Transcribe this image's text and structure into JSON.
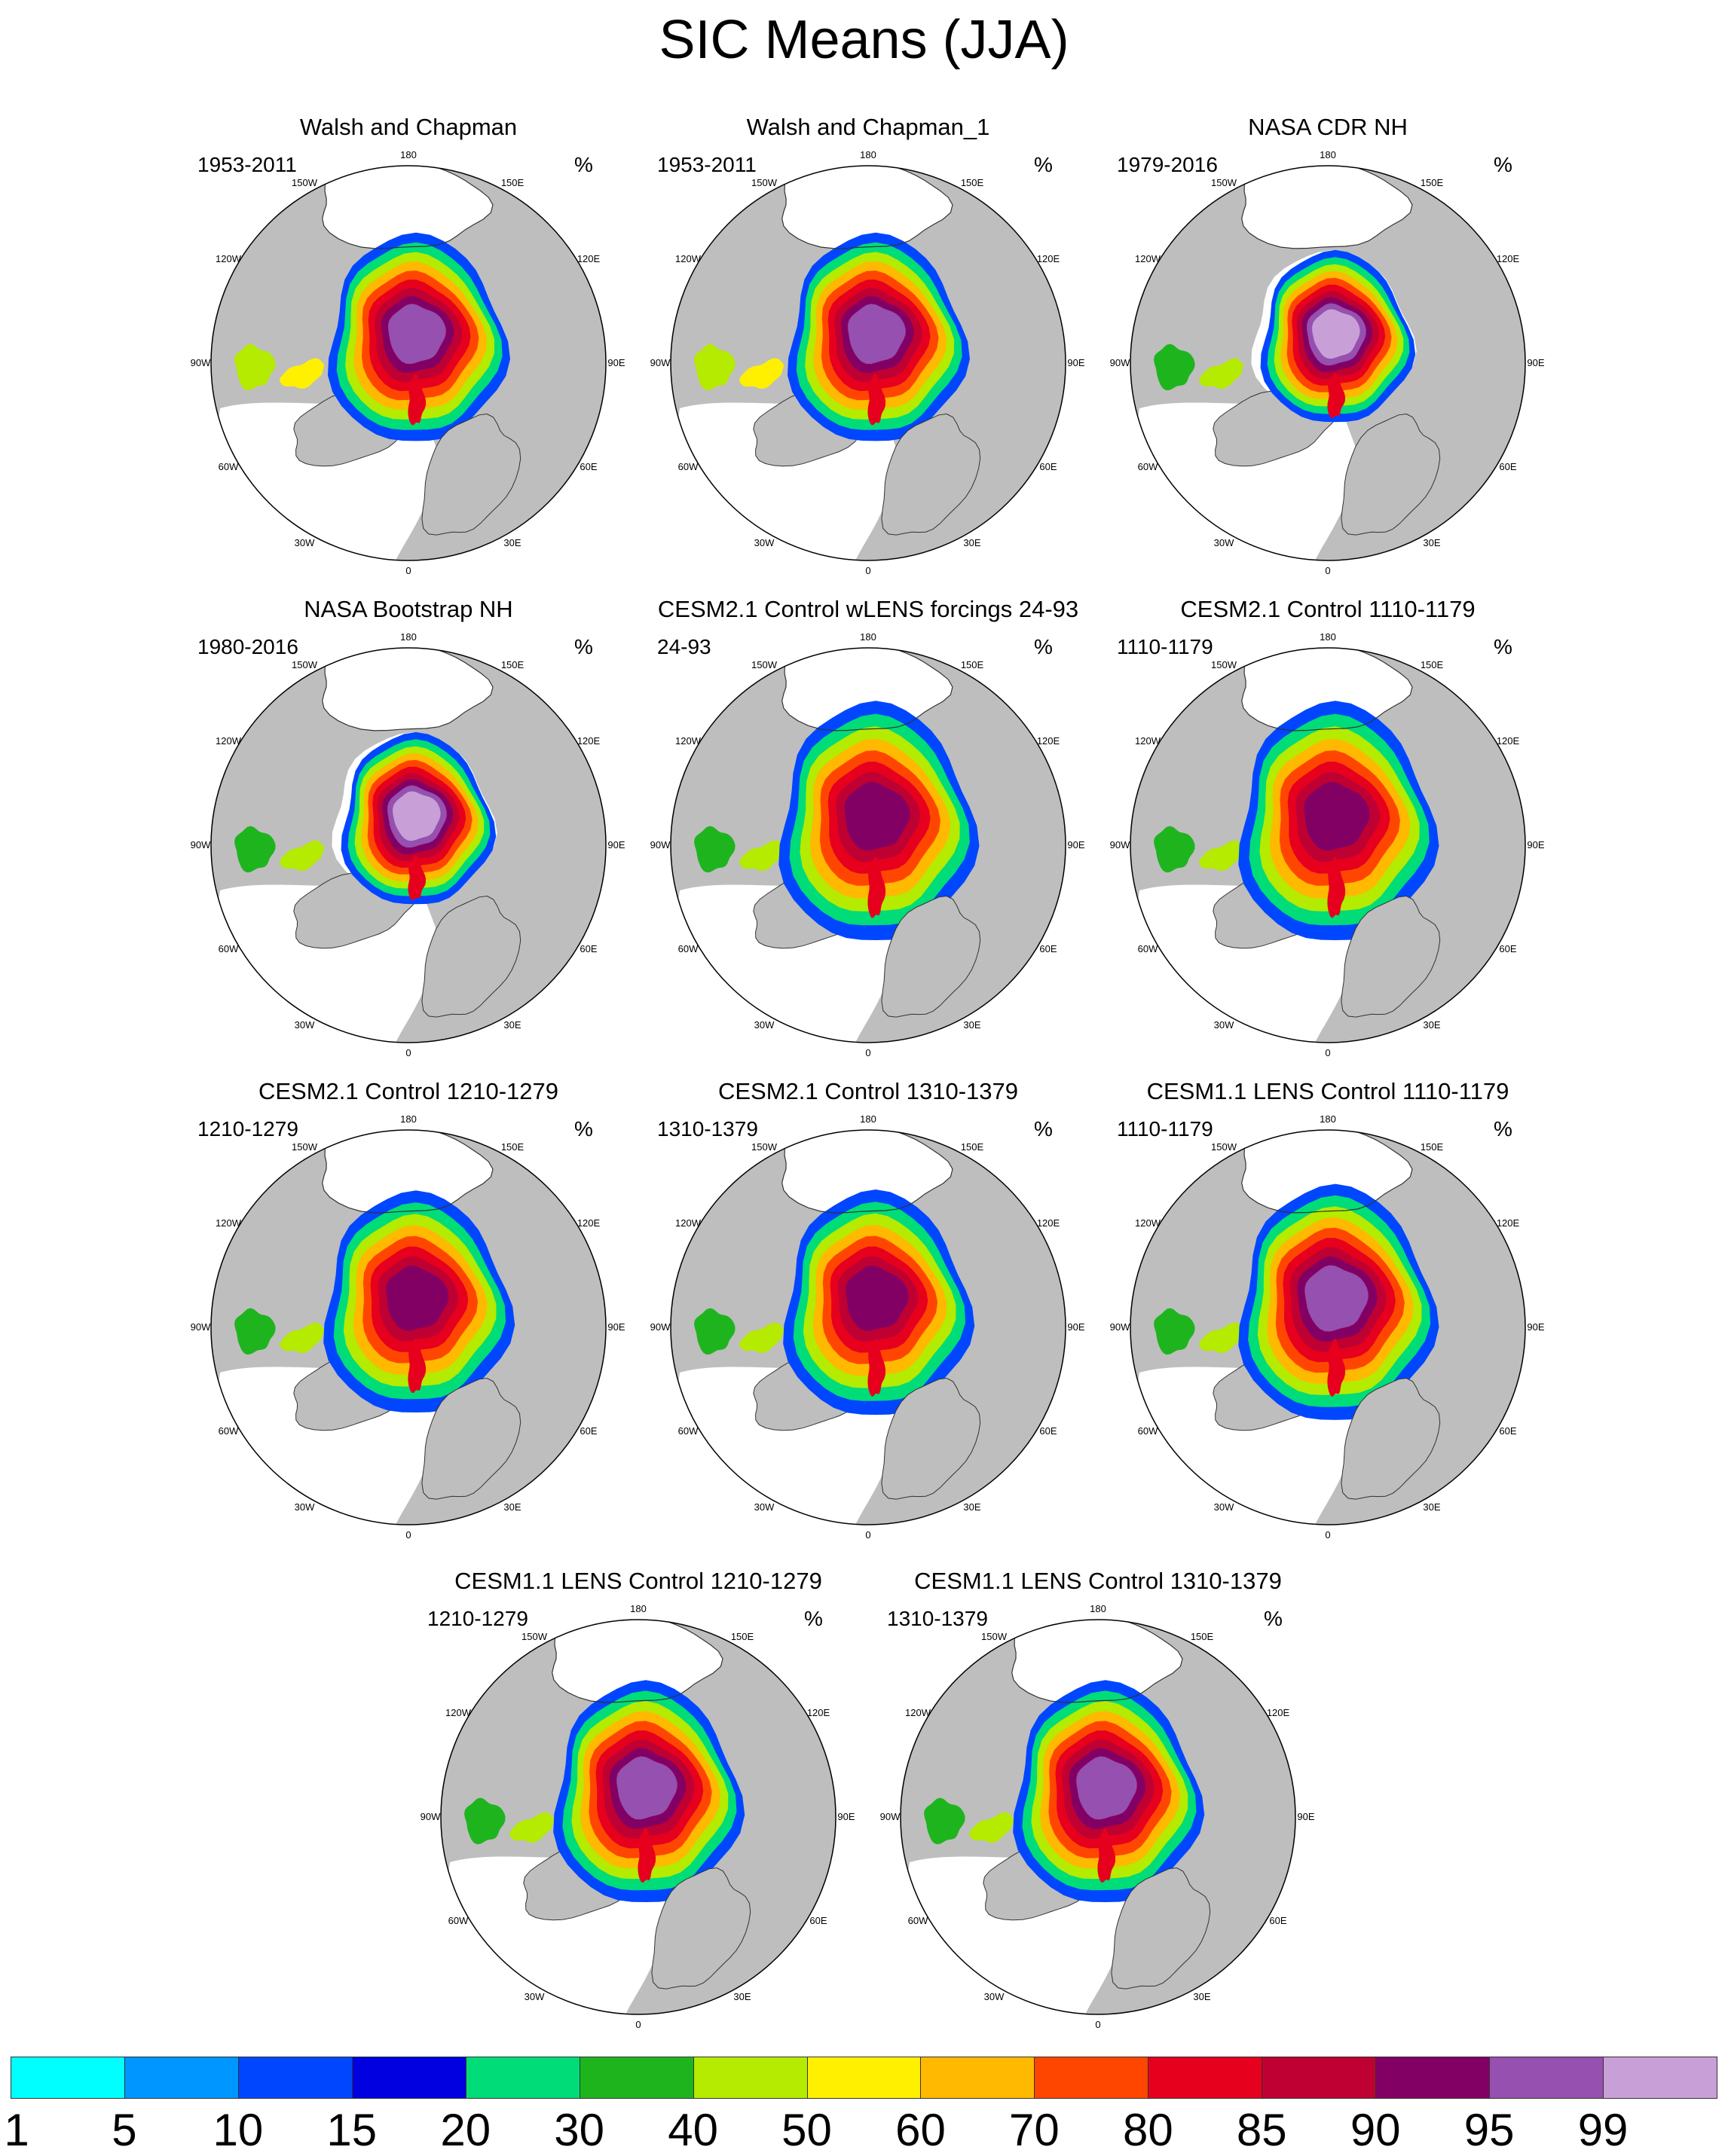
{
  "title": "SIC Means (JJA)",
  "units": "%",
  "longitude_labels": [
    "180",
    "150E",
    "120E",
    "90E",
    "60E",
    "30E",
    "0",
    "30W",
    "60W",
    "90W",
    "120W",
    "150W"
  ],
  "panels": [
    {
      "title": "Walsh and Chapman",
      "period": "1953-2011",
      "pack_level": 95,
      "pack_scale": 1.0,
      "atlantic_reach": 0.55,
      "hudson_level": 40
    },
    {
      "title": "Walsh and Chapman_1",
      "period": "1953-2011",
      "pack_level": 95,
      "pack_scale": 1.0,
      "atlantic_reach": 0.55,
      "hudson_level": 40
    },
    {
      "title": "NASA CDR NH",
      "period": "1979-2016",
      "pack_level": 99,
      "pack_scale": 0.85,
      "atlantic_reach": 0.45,
      "hudson_level": 30
    },
    {
      "title": "NASA Bootstrap NH",
      "period": "1980-2016",
      "pack_level": 99,
      "pack_scale": 0.85,
      "atlantic_reach": 0.45,
      "hudson_level": 30
    },
    {
      "title": "CESM2.1 Control wLENS forcings 24-93",
      "period": "24-93",
      "pack_level": 90,
      "pack_scale": 1.1,
      "atlantic_reach": 0.7,
      "hudson_level": 30
    },
    {
      "title": "CESM2.1 Control 1110-1179",
      "period": "1110-1179",
      "pack_level": 90,
      "pack_scale": 1.1,
      "atlantic_reach": 0.7,
      "hudson_level": 30
    },
    {
      "title": "CESM2.1 Control 1210-1279",
      "period": "1210-1279",
      "pack_level": 90,
      "pack_scale": 1.05,
      "atlantic_reach": 0.6,
      "hudson_level": 30
    },
    {
      "title": "CESM2.1 Control 1310-1379",
      "period": "1310-1379",
      "pack_level": 90,
      "pack_scale": 1.05,
      "atlantic_reach": 0.65,
      "hudson_level": 30
    },
    {
      "title": "CESM1.1 LENS Control 1110-1179",
      "period": "1110-1179",
      "pack_level": 95,
      "pack_scale": 1.1,
      "atlantic_reach": 0.65,
      "hudson_level": 30
    },
    {
      "title": "CESM1.1 LENS Control 1210-1279",
      "period": "1210-1279",
      "pack_level": 95,
      "pack_scale": 1.05,
      "atlantic_reach": 0.6,
      "hudson_level": 30
    },
    {
      "title": "CESM1.1 LENS Control 1310-1379",
      "period": "1310-1379",
      "pack_level": 95,
      "pack_scale": 1.05,
      "atlantic_reach": 0.6,
      "hudson_level": 30
    }
  ],
  "colorbar": {
    "labels": [
      "1",
      "5",
      "10",
      "15",
      "20",
      "30",
      "40",
      "50",
      "60",
      "70",
      "80",
      "85",
      "90",
      "95",
      "99"
    ],
    "colors": [
      "#00FFFF",
      "#0096FF",
      "#0046FF",
      "#0000E1",
      "#00DC78",
      "#1EB41E",
      "#B4EB00",
      "#FFF000",
      "#FFB900",
      "#FF4600",
      "#E6001E",
      "#BE0032",
      "#820064",
      "#9650AF",
      "#C8A0D7"
    ]
  },
  "colors": {
    "land": "#BEBEBE",
    "ocean": "#FFFFFF",
    "coast": "#333333"
  }
}
